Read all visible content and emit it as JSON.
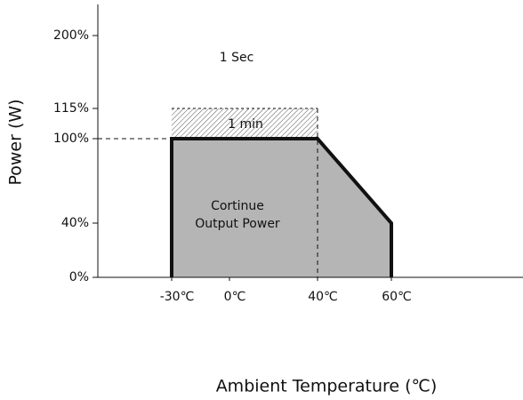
{
  "chart_data": {
    "type": "area",
    "ylabel": "Power (W)",
    "xlabel": "Ambient Temperature (℃)",
    "x": [
      -30,
      -30,
      40,
      60,
      60
    ],
    "values": [
      0,
      100,
      100,
      40,
      0
    ],
    "color": "#b5b5b5",
    "overload": {
      "x": [
        -30,
        40
      ],
      "values": [
        100,
        115
      ]
    },
    "annotations": [
      "1 Sec",
      "1 min",
      "Cortinue",
      "Output Power"
    ],
    "xlim": [
      -70,
      95
    ],
    "ylim": [
      0,
      235
    ],
    "xticks": [
      {
        "value": -30,
        "label": "-30℃"
      },
      {
        "value": 0,
        "label": "0℃"
      },
      {
        "value": 40,
        "label": "40℃"
      },
      {
        "value": 60,
        "label": "60℃"
      }
    ],
    "yticks": [
      {
        "value": 0,
        "label": "0%"
      },
      {
        "value": 40,
        "label": "40%"
      },
      {
        "value": 100,
        "label": "100%"
      },
      {
        "value": 115,
        "label": "115%"
      },
      {
        "value": 200,
        "label": "200%"
      }
    ]
  }
}
